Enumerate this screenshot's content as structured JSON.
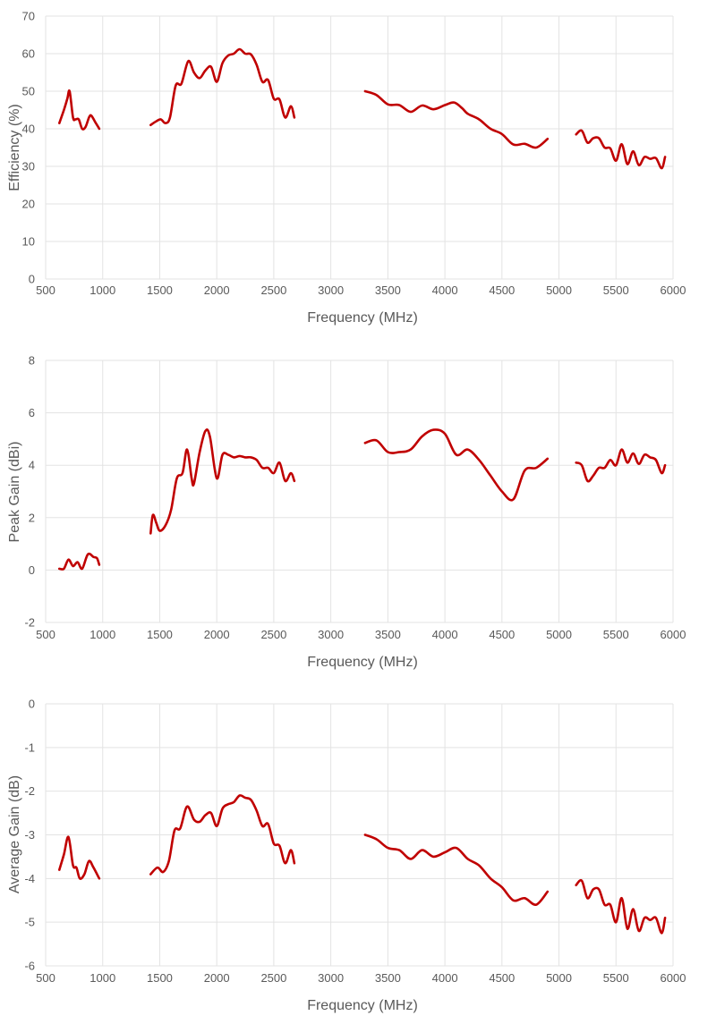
{
  "chart_data": [
    {
      "type": "line",
      "xlabel": "Frequency (MHz)",
      "ylabel": "Efficiency (%)",
      "xlim": [
        500,
        6000
      ],
      "ylim": [
        0,
        70
      ],
      "xticks": [
        500,
        1000,
        1500,
        2000,
        2500,
        3000,
        3500,
        4000,
        4500,
        5000,
        5500,
        6000
      ],
      "yticks": [
        0,
        10,
        20,
        30,
        40,
        50,
        60,
        70
      ],
      "grid": true,
      "color": "#c00000",
      "segments": [
        [
          [
            620,
            41.5
          ],
          [
            660,
            45
          ],
          [
            690,
            48
          ],
          [
            710,
            50
          ],
          [
            740,
            43
          ],
          [
            760,
            42.5
          ],
          [
            790,
            42.5
          ],
          [
            820,
            40
          ],
          [
            850,
            40.5
          ],
          [
            880,
            43
          ],
          [
            900,
            43.5
          ],
          [
            940,
            41.5
          ],
          [
            970,
            40
          ]
        ],
        [
          [
            1420,
            41
          ],
          [
            1470,
            42
          ],
          [
            1510,
            42.5
          ],
          [
            1550,
            41.5
          ],
          [
            1590,
            43
          ],
          [
            1640,
            51.5
          ],
          [
            1690,
            52
          ],
          [
            1750,
            58
          ],
          [
            1800,
            55
          ],
          [
            1850,
            53.5
          ],
          [
            1900,
            55.5
          ],
          [
            1950,
            56.5
          ],
          [
            2000,
            52.5
          ],
          [
            2050,
            57.5
          ],
          [
            2100,
            59.5
          ],
          [
            2150,
            60
          ],
          [
            2200,
            61.2
          ],
          [
            2250,
            60
          ],
          [
            2300,
            59.8
          ],
          [
            2350,
            57
          ],
          [
            2400,
            52.5
          ],
          [
            2450,
            53
          ],
          [
            2500,
            48
          ],
          [
            2550,
            47.8
          ],
          [
            2600,
            43
          ],
          [
            2650,
            46
          ],
          [
            2680,
            43
          ]
        ],
        [
          [
            3300,
            50
          ],
          [
            3400,
            49
          ],
          [
            3500,
            46.5
          ],
          [
            3600,
            46.3
          ],
          [
            3700,
            44.5
          ],
          [
            3800,
            46.2
          ],
          [
            3900,
            45.2
          ],
          [
            4000,
            46.3
          ],
          [
            4080,
            47
          ],
          [
            4150,
            45.5
          ],
          [
            4200,
            44
          ],
          [
            4300,
            42.5
          ],
          [
            4400,
            40
          ],
          [
            4500,
            38.6
          ],
          [
            4600,
            35.8
          ],
          [
            4700,
            36
          ],
          [
            4800,
            35
          ],
          [
            4900,
            37.3
          ]
        ],
        [
          [
            5150,
            38.5
          ],
          [
            5200,
            39.5
          ],
          [
            5250,
            36.3
          ],
          [
            5300,
            37.5
          ],
          [
            5350,
            37.5
          ],
          [
            5400,
            35
          ],
          [
            5450,
            34.8
          ],
          [
            5500,
            31.5
          ],
          [
            5550,
            35.9
          ],
          [
            5600,
            30.6
          ],
          [
            5650,
            34
          ],
          [
            5700,
            30.3
          ],
          [
            5750,
            32.5
          ],
          [
            5800,
            32
          ],
          [
            5850,
            32.2
          ],
          [
            5900,
            29.5
          ],
          [
            5930,
            32.5
          ]
        ]
      ]
    },
    {
      "type": "line",
      "xlabel": "Frequency (MHz)",
      "ylabel": "Peak Gain (dBi)",
      "xlim": [
        500,
        6000
      ],
      "ylim": [
        -2,
        8
      ],
      "xticks": [
        500,
        1000,
        1500,
        2000,
        2500,
        3000,
        3500,
        4000,
        4500,
        5000,
        5500,
        6000
      ],
      "yticks": [
        -2,
        0,
        2,
        4,
        6,
        8
      ],
      "grid": true,
      "color": "#c00000",
      "segments": [
        [
          [
            620,
            0.05
          ],
          [
            660,
            0.05
          ],
          [
            700,
            0.4
          ],
          [
            740,
            0.15
          ],
          [
            780,
            0.3
          ],
          [
            820,
            0.05
          ],
          [
            870,
            0.6
          ],
          [
            920,
            0.5
          ],
          [
            950,
            0.45
          ],
          [
            970,
            0.2
          ]
        ],
        [
          [
            1420,
            1.4
          ],
          [
            1440,
            2.1
          ],
          [
            1470,
            1.8
          ],
          [
            1500,
            1.5
          ],
          [
            1550,
            1.7
          ],
          [
            1600,
            2.3
          ],
          [
            1650,
            3.5
          ],
          [
            1700,
            3.7
          ],
          [
            1740,
            4.6
          ],
          [
            1780,
            3.5
          ],
          [
            1800,
            3.3
          ],
          [
            1850,
            4.5
          ],
          [
            1900,
            5.3
          ],
          [
            1940,
            5.1
          ],
          [
            2000,
            3.5
          ],
          [
            2050,
            4.4
          ],
          [
            2100,
            4.4
          ],
          [
            2150,
            4.3
          ],
          [
            2200,
            4.35
          ],
          [
            2250,
            4.3
          ],
          [
            2300,
            4.3
          ],
          [
            2350,
            4.2
          ],
          [
            2400,
            3.9
          ],
          [
            2450,
            3.9
          ],
          [
            2500,
            3.7
          ],
          [
            2550,
            4.1
          ],
          [
            2600,
            3.4
          ],
          [
            2650,
            3.7
          ],
          [
            2680,
            3.4
          ]
        ],
        [
          [
            3300,
            4.85
          ],
          [
            3400,
            4.95
          ],
          [
            3500,
            4.5
          ],
          [
            3600,
            4.5
          ],
          [
            3700,
            4.6
          ],
          [
            3800,
            5.1
          ],
          [
            3900,
            5.35
          ],
          [
            4000,
            5.2
          ],
          [
            4100,
            4.4
          ],
          [
            4200,
            4.6
          ],
          [
            4300,
            4.2
          ],
          [
            4400,
            3.6
          ],
          [
            4500,
            3.0
          ],
          [
            4600,
            2.7
          ],
          [
            4700,
            3.8
          ],
          [
            4800,
            3.9
          ],
          [
            4900,
            4.25
          ]
        ],
        [
          [
            5150,
            4.1
          ],
          [
            5200,
            4.0
          ],
          [
            5250,
            3.4
          ],
          [
            5300,
            3.6
          ],
          [
            5350,
            3.9
          ],
          [
            5400,
            3.9
          ],
          [
            5450,
            4.2
          ],
          [
            5500,
            4.0
          ],
          [
            5550,
            4.6
          ],
          [
            5600,
            4.1
          ],
          [
            5650,
            4.45
          ],
          [
            5700,
            4.05
          ],
          [
            5750,
            4.4
          ],
          [
            5800,
            4.3
          ],
          [
            5850,
            4.2
          ],
          [
            5900,
            3.7
          ],
          [
            5930,
            4.0
          ]
        ]
      ]
    },
    {
      "type": "line",
      "xlabel": "Frequency (MHz)",
      "ylabel": "Average Gain (dB)",
      "xlim": [
        500,
        6000
      ],
      "ylim": [
        -6,
        0
      ],
      "xticks": [
        500,
        1000,
        1500,
        2000,
        2500,
        3000,
        3500,
        4000,
        4500,
        5000,
        5500,
        6000
      ],
      "yticks": [
        -6,
        -5,
        -4,
        -3,
        -2,
        -1,
        0
      ],
      "grid": true,
      "color": "#c00000",
      "segments": [
        [
          [
            620,
            -3.8
          ],
          [
            660,
            -3.45
          ],
          [
            700,
            -3.05
          ],
          [
            740,
            -3.7
          ],
          [
            770,
            -3.75
          ],
          [
            800,
            -4.0
          ],
          [
            840,
            -3.9
          ],
          [
            880,
            -3.6
          ],
          [
            920,
            -3.75
          ],
          [
            970,
            -4.0
          ]
        ],
        [
          [
            1420,
            -3.9
          ],
          [
            1480,
            -3.75
          ],
          [
            1530,
            -3.85
          ],
          [
            1580,
            -3.6
          ],
          [
            1630,
            -2.9
          ],
          [
            1680,
            -2.85
          ],
          [
            1740,
            -2.35
          ],
          [
            1800,
            -2.65
          ],
          [
            1850,
            -2.7
          ],
          [
            1900,
            -2.55
          ],
          [
            1950,
            -2.5
          ],
          [
            2000,
            -2.8
          ],
          [
            2050,
            -2.4
          ],
          [
            2100,
            -2.3
          ],
          [
            2150,
            -2.25
          ],
          [
            2200,
            -2.1
          ],
          [
            2250,
            -2.15
          ],
          [
            2300,
            -2.2
          ],
          [
            2350,
            -2.45
          ],
          [
            2400,
            -2.8
          ],
          [
            2450,
            -2.75
          ],
          [
            2500,
            -3.2
          ],
          [
            2550,
            -3.25
          ],
          [
            2600,
            -3.65
          ],
          [
            2650,
            -3.35
          ],
          [
            2680,
            -3.65
          ]
        ],
        [
          [
            3300,
            -3.0
          ],
          [
            3400,
            -3.1
          ],
          [
            3500,
            -3.3
          ],
          [
            3600,
            -3.35
          ],
          [
            3700,
            -3.55
          ],
          [
            3800,
            -3.35
          ],
          [
            3900,
            -3.5
          ],
          [
            4000,
            -3.4
          ],
          [
            4100,
            -3.3
          ],
          [
            4200,
            -3.55
          ],
          [
            4300,
            -3.7
          ],
          [
            4400,
            -4.0
          ],
          [
            4500,
            -4.2
          ],
          [
            4600,
            -4.5
          ],
          [
            4700,
            -4.45
          ],
          [
            4800,
            -4.6
          ],
          [
            4900,
            -4.3
          ]
        ],
        [
          [
            5150,
            -4.15
          ],
          [
            5200,
            -4.05
          ],
          [
            5250,
            -4.45
          ],
          [
            5300,
            -4.25
          ],
          [
            5350,
            -4.25
          ],
          [
            5400,
            -4.6
          ],
          [
            5450,
            -4.6
          ],
          [
            5500,
            -5.0
          ],
          [
            5550,
            -4.45
          ],
          [
            5600,
            -5.15
          ],
          [
            5650,
            -4.7
          ],
          [
            5700,
            -5.2
          ],
          [
            5750,
            -4.9
          ],
          [
            5800,
            -4.95
          ],
          [
            5850,
            -4.9
          ],
          [
            5900,
            -5.25
          ],
          [
            5930,
            -4.9
          ]
        ]
      ]
    }
  ]
}
